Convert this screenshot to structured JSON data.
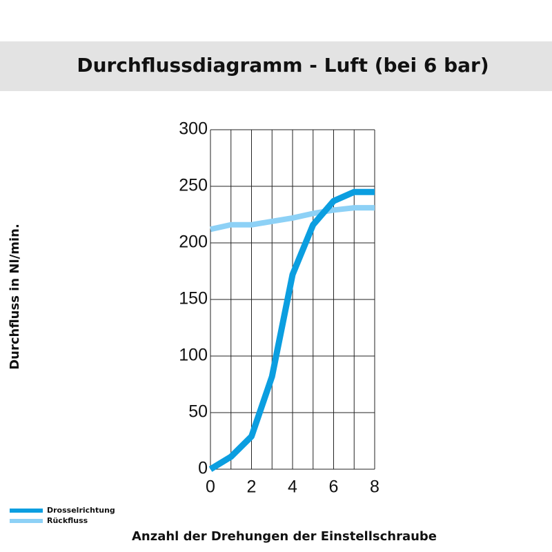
{
  "chart_data": {
    "type": "line",
    "title": "Durchflussdiagramm - Luft (bei 6 bar)",
    "x_label": "Anzahl der Drehungen der Einstellschraube",
    "y_label": "Durchfluss in Nl/min.",
    "x": [
      0,
      1,
      2,
      3,
      4,
      5,
      6,
      7,
      8
    ],
    "series": [
      {
        "name": "Drosselrichtung",
        "color": "#0b9ee0",
        "values": [
          0,
          11,
          29,
          82,
          172,
          216,
          237,
          245,
          245
        ]
      },
      {
        "name": "Rückfluss",
        "color": "#8dd1f6",
        "values": [
          212,
          216,
          216,
          219,
          222,
          226,
          229,
          231,
          231
        ]
      }
    ],
    "xlim": [
      0,
      8
    ],
    "xticks": [
      0,
      2,
      4,
      6,
      8
    ],
    "x_minor_ticks": [
      1,
      3,
      5,
      7
    ],
    "ylim": [
      0,
      300
    ],
    "yticks": [
      0,
      50,
      100,
      150,
      200,
      250,
      300
    ],
    "grid": true,
    "legend": "bottom-left"
  }
}
